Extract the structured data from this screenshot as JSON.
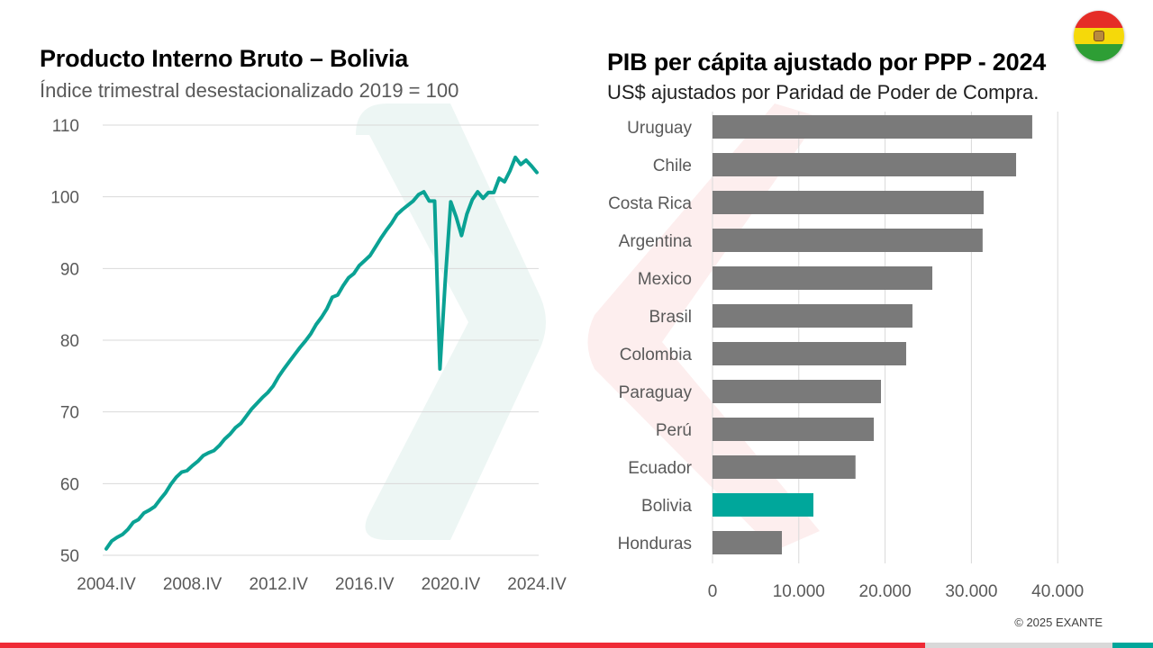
{
  "colors": {
    "line": "#0aa294",
    "bar_default": "#7a7a7a",
    "bar_highlight": "#00a79b",
    "gridline": "#d9d9d9",
    "watermark_teal": "#edf6f4",
    "watermark_red": "#fdeeee",
    "footer_red": "#ef2b36",
    "footer_gray": "#d9d9d9",
    "footer_teal": "#00a79b",
    "flag_red": "#e52d27",
    "flag_yellow": "#f5d90a",
    "flag_green": "#2e9e35"
  },
  "left": {
    "title": "Producto Interno Bruto – Bolivia",
    "subtitle": "Índice trimestral desestacionalizado 2019 = 100"
  },
  "right": {
    "title": "PIB per cápita ajustado por PPP - 2024",
    "subtitle": "US$ ajustados por Paridad de Poder de Compra."
  },
  "flag": {
    "icon": "bolivia-flag-icon"
  },
  "footer": {
    "copyright": "© 2025 EXANTE",
    "bar_segments": [
      "red",
      "gray",
      "teal"
    ]
  },
  "chart_data": [
    {
      "type": "line",
      "title": "Producto Interno Bruto – Bolivia",
      "subtitle": "Índice trimestral desestacionalizado 2019 = 100",
      "xlabel": "",
      "ylabel": "",
      "x_start": "2004.IV",
      "x_end": "2024.IV",
      "frequency": "quarterly",
      "x_tick_labels": [
        "2004.IV",
        "2008.IV",
        "2012.IV",
        "2016.IV",
        "2020.IV",
        "2024.IV"
      ],
      "y_tick_labels": [
        "50",
        "60",
        "70",
        "80",
        "90",
        "100",
        "110"
      ],
      "ylim": [
        50,
        110
      ],
      "y_ticks": [
        50,
        60,
        70,
        80,
        90,
        100,
        110
      ],
      "grid": true,
      "legend": "none",
      "series": [
        {
          "name": "PIB Bolivia",
          "values": [
            50.9,
            52.0,
            52.5,
            52.9,
            53.6,
            54.6,
            55.0,
            55.9,
            56.3,
            56.8,
            57.8,
            58.7,
            59.9,
            60.9,
            61.6,
            61.8,
            62.5,
            63.1,
            63.9,
            64.3,
            64.6,
            65.3,
            66.2,
            66.9,
            67.8,
            68.4,
            69.4,
            70.4,
            71.2,
            72.0,
            72.7,
            73.6,
            74.9,
            76.0,
            77.0,
            78.0,
            79.0,
            79.9,
            80.9,
            82.2,
            83.2,
            84.4,
            86.0,
            86.3,
            87.6,
            88.7,
            89.3,
            90.4,
            91.1,
            91.8,
            93.0,
            94.2,
            95.3,
            96.3,
            97.5,
            98.2,
            98.8,
            99.4,
            100.3,
            100.7,
            99.4,
            99.4,
            76.0,
            88.5,
            99.3,
            97.2,
            94.6,
            97.6,
            99.6,
            100.7,
            99.8,
            100.6,
            100.6,
            102.6,
            102.1,
            103.6,
            105.5,
            104.5,
            105.1,
            104.3,
            103.4
          ]
        }
      ]
    },
    {
      "type": "bar",
      "orientation": "horizontal",
      "title": "PIB per cápita ajustado por PPP - 2024",
      "subtitle": "US$ ajustados por Paridad de Poder de Compra.",
      "xlabel": "",
      "ylabel": "",
      "categories": [
        "Uruguay",
        "Chile",
        "Costa Rica",
        "Argentina",
        "Mexico",
        "Brasil",
        "Colombia",
        "Paraguay",
        "Perú",
        "Ecuador",
        "Bolivia",
        "Honduras"
      ],
      "values": [
        37050,
        35180,
        31420,
        31300,
        25470,
        23170,
        22440,
        19520,
        18690,
        16570,
        11690,
        8040
      ],
      "highlight": "Bolivia",
      "xlim": [
        0,
        40000
      ],
      "x_ticks": [
        0,
        10000,
        20000,
        30000,
        40000
      ],
      "x_tick_labels": [
        "0",
        "10.000",
        "20.000",
        "30.000",
        "40.000"
      ],
      "grid": true,
      "legend": "none"
    }
  ]
}
